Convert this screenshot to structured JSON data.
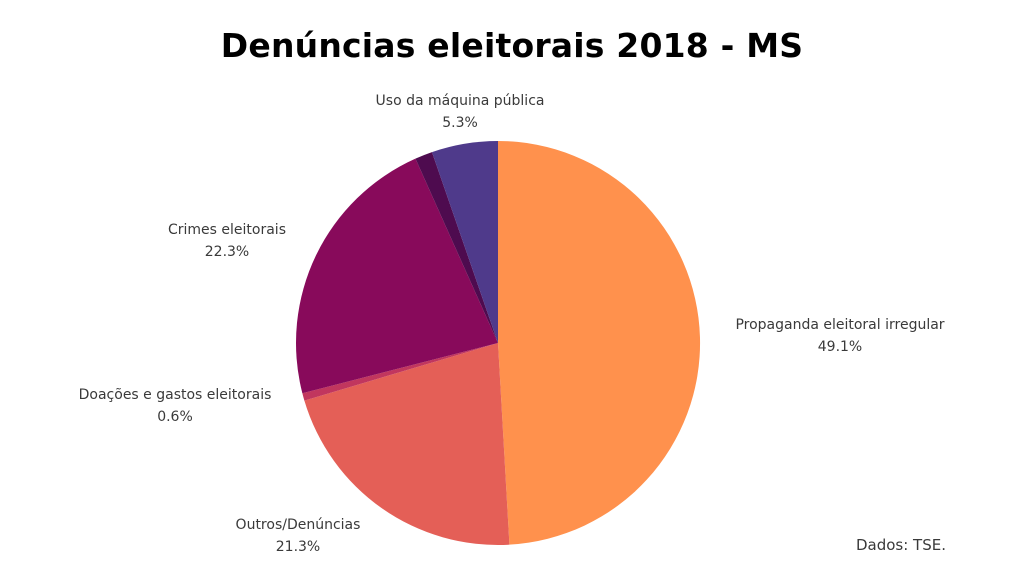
{
  "chart_data": {
    "type": "pie",
    "title": "Denúncias eleitorais 2018 - MS",
    "slices": [
      {
        "label": "Propaganda eleitoral irregular",
        "value": 49.1,
        "display": "49.1%",
        "color": "#FF914D"
      },
      {
        "label": "Outros/Denúncias",
        "value": 21.3,
        "display": "21.3%",
        "color": "#E45F57"
      },
      {
        "label": "Doações e gastos eleitorais",
        "value": 0.6,
        "display": "0.6%",
        "color": "#C1365E"
      },
      {
        "label": "Crimes eleitorais",
        "value": 22.3,
        "display": "22.3%",
        "color": "#880A5B"
      },
      {
        "label": "",
        "value": 1.4,
        "display": "",
        "color": "#4E0B4F"
      },
      {
        "label": "Uso da máquina pública",
        "value": 5.3,
        "display": "5.3%",
        "color": "#4F3A8B"
      }
    ],
    "source": "Dados: TSE."
  }
}
